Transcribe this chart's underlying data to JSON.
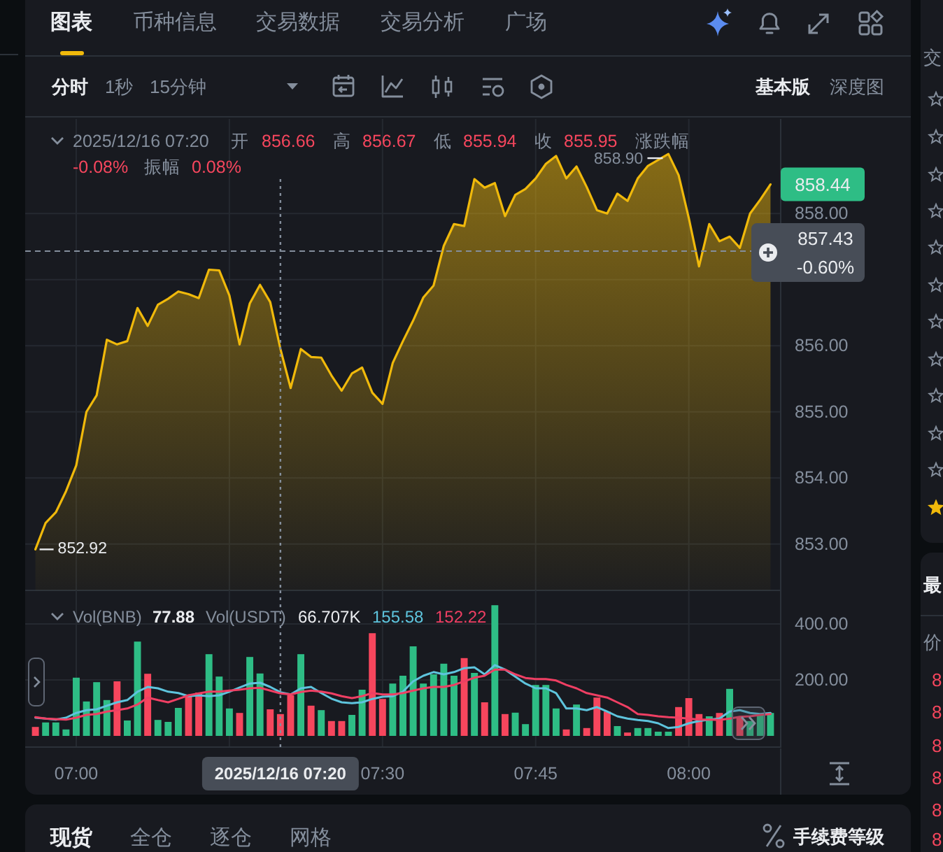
{
  "chart_data": [
    {
      "type": "area",
      "x": [
        "2025-12-16T06:56",
        "2025-12-16T06:57",
        "2025-12-16T06:58",
        "2025-12-16T06:59",
        "2025-12-16T07:00",
        "2025-12-16T07:01",
        "2025-12-16T07:02",
        "2025-12-16T07:03",
        "2025-12-16T07:04",
        "2025-12-16T07:05",
        "2025-12-16T07:06",
        "2025-12-16T07:07",
        "2025-12-16T07:08",
        "2025-12-16T07:09",
        "2025-12-16T07:10",
        "2025-12-16T07:11",
        "2025-12-16T07:12",
        "2025-12-16T07:13",
        "2025-12-16T07:14",
        "2025-12-16T07:15",
        "2025-12-16T07:16",
        "2025-12-16T07:17",
        "2025-12-16T07:18",
        "2025-12-16T07:19",
        "2025-12-16T07:20",
        "2025-12-16T07:21",
        "2025-12-16T07:22",
        "2025-12-16T07:23",
        "2025-12-16T07:24",
        "2025-12-16T07:25",
        "2025-12-16T07:26",
        "2025-12-16T07:27",
        "2025-12-16T07:28",
        "2025-12-16T07:29",
        "2025-12-16T07:30",
        "2025-12-16T07:31",
        "2025-12-16T07:32",
        "2025-12-16T07:33",
        "2025-12-16T07:34",
        "2025-12-16T07:35",
        "2025-12-16T07:36",
        "2025-12-16T07:37",
        "2025-12-16T07:38",
        "2025-12-16T07:39",
        "2025-12-16T07:40",
        "2025-12-16T07:41",
        "2025-12-16T07:42",
        "2025-12-16T07:43",
        "2025-12-16T07:44",
        "2025-12-16T07:45",
        "2025-12-16T07:46",
        "2025-12-16T07:47",
        "2025-12-16T07:48",
        "2025-12-16T07:49",
        "2025-12-16T07:50",
        "2025-12-16T07:51",
        "2025-12-16T07:52",
        "2025-12-16T07:53",
        "2025-12-16T07:54",
        "2025-12-16T07:55",
        "2025-12-16T07:56",
        "2025-12-16T07:57",
        "2025-12-16T07:58",
        "2025-12-16T07:59",
        "2025-12-16T08:00",
        "2025-12-16T08:01",
        "2025-12-16T08:02",
        "2025-12-16T08:03",
        "2025-12-16T08:04",
        "2025-12-16T08:05",
        "2025-12-16T08:06",
        "2025-12-16T08:07",
        "2025-12-16T08:08"
      ],
      "values": [
        852.92,
        853.32,
        853.48,
        853.8,
        854.19,
        855.0,
        855.25,
        856.09,
        856.02,
        856.07,
        856.57,
        856.3,
        856.62,
        856.71,
        856.82,
        856.78,
        856.72,
        857.15,
        857.14,
        856.76,
        856.02,
        856.64,
        856.92,
        856.66,
        855.95,
        855.36,
        855.95,
        855.83,
        855.82,
        855.55,
        855.32,
        855.58,
        855.67,
        855.29,
        855.12,
        855.74,
        856.07,
        856.38,
        856.73,
        856.91,
        857.51,
        857.84,
        857.81,
        858.52,
        858.39,
        858.46,
        857.96,
        858.28,
        858.37,
        858.53,
        858.75,
        858.87,
        858.53,
        858.71,
        858.4,
        858.05,
        858.0,
        858.3,
        858.19,
        858.53,
        858.72,
        858.81,
        858.9,
        858.58,
        857.93,
        857.2,
        857.84,
        857.58,
        857.65,
        857.48,
        858.0,
        858.21,
        858.44
      ],
      "color": "#f0b90b",
      "value_labels": [
        "852.92",
        null,
        null,
        null,
        null,
        null,
        null,
        null,
        null,
        null,
        null,
        null,
        null,
        null,
        null,
        null,
        null,
        null,
        null,
        null,
        null,
        null,
        null,
        null,
        null,
        null,
        null,
        null,
        null,
        null,
        null,
        null,
        null,
        null,
        null,
        null,
        null,
        null,
        null,
        null,
        null,
        null,
        null,
        null,
        null,
        null,
        null,
        null,
        null,
        null,
        null,
        null,
        null,
        null,
        null,
        null,
        null,
        null,
        null,
        null,
        null,
        null,
        "858.90",
        null,
        null,
        null,
        null,
        null,
        null,
        null,
        null,
        null,
        "858.44"
      ],
      "xlim": [
        "2025-12-16T06:55",
        "2025-12-16T08:09"
      ],
      "ylim": [
        852.3,
        859.43
      ],
      "xticks": [
        {
          "value": "2025-12-16T07:00",
          "label": null
        },
        {
          "value": "2025-12-16T07:15",
          "label": null
        },
        {
          "value": "2025-12-16T07:30",
          "label": null
        },
        {
          "value": "2025-12-16T07:45",
          "label": null
        },
        {
          "value": "2025-12-16T08:00",
          "label": null
        }
      ],
      "yticks": [
        {
          "value": 853,
          "label": "853.00"
        },
        {
          "value": 854,
          "label": "854.00"
        },
        {
          "value": 855,
          "label": "855.00"
        },
        {
          "value": 856,
          "label": "856.00"
        },
        {
          "value": 857,
          "label": null
        },
        {
          "value": 858,
          "label": "858.00"
        }
      ],
      "tick_labels": "y",
      "grid": true,
      "ref_lines": [
        {
          "axis": "x",
          "value": "2025-12-16T07:20",
          "line_style": "dotted"
        },
        {
          "axis": "y",
          "value": 857.43,
          "label": "857.43",
          "line_style": "dashed"
        }
      ],
      "annotations": [
        "图表",
        "币种信息",
        "交易数据",
        "交易分析",
        "广场",
        "分时",
        "1秒",
        "15分钟",
        "基本版",
        "深度图",
        "2025/12/16 07:20",
        "开",
        "856.66",
        "高",
        "856.67",
        "低",
        "855.94",
        "收",
        "855.95",
        "涨跌幅",
        "-0.08%",
        "振幅",
        "0.08%",
        "-0.60%",
        "交",
        "最",
        "价",
        "8",
        "8",
        "8",
        "8",
        "8",
        "8"
      ]
    },
    {
      "type": "bar",
      "x": [
        "2025-12-16T06:56",
        "2025-12-16T06:57",
        "2025-12-16T06:58",
        "2025-12-16T06:59",
        "2025-12-16T07:00",
        "2025-12-16T07:01",
        "2025-12-16T07:02",
        "2025-12-16T07:03",
        "2025-12-16T07:04",
        "2025-12-16T07:05",
        "2025-12-16T07:06",
        "2025-12-16T07:07",
        "2025-12-16T07:08",
        "2025-12-16T07:09",
        "2025-12-16T07:10",
        "2025-12-16T07:11",
        "2025-12-16T07:12",
        "2025-12-16T07:13",
        "2025-12-16T07:14",
        "2025-12-16T07:15",
        "2025-12-16T07:16",
        "2025-12-16T07:17",
        "2025-12-16T07:18",
        "2025-12-16T07:19",
        "2025-12-16T07:20",
        "2025-12-16T07:21",
        "2025-12-16T07:22",
        "2025-12-16T07:23",
        "2025-12-16T07:24",
        "2025-12-16T07:25",
        "2025-12-16T07:26",
        "2025-12-16T07:27",
        "2025-12-16T07:28",
        "2025-12-16T07:29",
        "2025-12-16T07:30",
        "2025-12-16T07:31",
        "2025-12-16T07:32",
        "2025-12-16T07:33",
        "2025-12-16T07:34",
        "2025-12-16T07:35",
        "2025-12-16T07:36",
        "2025-12-16T07:37",
        "2025-12-16T07:38",
        "2025-12-16T07:39",
        "2025-12-16T07:40",
        "2025-12-16T07:41",
        "2025-12-16T07:42",
        "2025-12-16T07:43",
        "2025-12-16T07:44",
        "2025-12-16T07:45",
        "2025-12-16T07:46",
        "2025-12-16T07:47",
        "2025-12-16T07:48",
        "2025-12-16T07:49",
        "2025-12-16T07:50",
        "2025-12-16T07:51",
        "2025-12-16T07:52",
        "2025-12-16T07:53",
        "2025-12-16T07:54",
        "2025-12-16T07:55",
        "2025-12-16T07:56",
        "2025-12-16T07:57",
        "2025-12-16T07:58",
        "2025-12-16T07:59",
        "2025-12-16T08:00",
        "2025-12-16T08:01",
        "2025-12-16T08:02",
        "2025-12-16T08:03",
        "2025-12-16T08:04",
        "2025-12-16T08:05",
        "2025-12-16T08:06",
        "2025-12-16T08:07",
        "2025-12-16T08:08"
      ],
      "series": [
        {
          "values": [
            32,
            48,
            48,
            23,
            208,
            123,
            192,
            128,
            195,
            55,
            337,
            222,
            57,
            50,
            100,
            148,
            155,
            292,
            212,
            98,
            82,
            282,
            223,
            95,
            78,
            145,
            292,
            108,
            92,
            53,
            53,
            75,
            165,
            367,
            132,
            187,
            215,
            320,
            187,
            220,
            258,
            215,
            278,
            225,
            120,
            467,
            78,
            83,
            42,
            182,
            182,
            98,
            23,
            112,
            28,
            137,
            87,
            35,
            12,
            28,
            28,
            15,
            15,
            103,
            135,
            78,
            70,
            82,
            168,
            70,
            53,
            78,
            82
          ],
          "colors": [
            "#f6465d",
            "#2ebd85",
            "#2ebd85",
            "#2ebd85",
            "#2ebd85",
            "#2ebd85",
            "#2ebd85",
            "#2ebd85",
            "#f6465d",
            "#2ebd85",
            "#2ebd85",
            "#f6465d",
            "#2ebd85",
            "#2ebd85",
            "#2ebd85",
            "#f6465d",
            "#f6465d",
            "#2ebd85",
            "#2ebd85",
            "#2ebd85",
            "#f6465d",
            "#2ebd85",
            "#2ebd85",
            "#f6465d",
            "#f6465d",
            "#f6465d",
            "#2ebd85",
            "#f6465d",
            "#2ebd85",
            "#f6465d",
            "#f6465d",
            "#2ebd85",
            "#2ebd85",
            "#f6465d",
            "#f6465d",
            "#2ebd85",
            "#2ebd85",
            "#2ebd85",
            "#2ebd85",
            "#2ebd85",
            "#2ebd85",
            "#2ebd85",
            "#f6465d",
            "#2ebd85",
            "#f6465d",
            "#2ebd85",
            "#f6465d",
            "#2ebd85",
            "#2ebd85",
            "#2ebd85",
            "#2ebd85",
            "#2ebd85",
            "#f6465d",
            "#2ebd85",
            "#f6465d",
            "#f6465d",
            "#f6465d",
            "#2ebd85",
            "#f6465d",
            "#2ebd85",
            "#2ebd85",
            "#2ebd85",
            "#2ebd85",
            "#f6465d",
            "#f6465d",
            "#f6465d",
            "#2ebd85",
            "#f6465d",
            "#2ebd85",
            "#f6465d",
            "#2ebd85",
            "#2ebd85",
            "#2ebd85"
          ]
        },
        {
          "type": "line",
          "color": "#5ec4dd",
          "values": [
            65,
            62,
            58,
            65,
            82,
            92,
            95,
            108,
            120,
            128,
            158,
            175,
            170,
            158,
            153,
            142,
            145,
            142,
            145,
            158,
            173,
            187,
            190,
            175,
            156,
            148,
            170,
            175,
            153,
            133,
            120,
            117,
            120,
            132,
            140,
            142,
            158,
            195,
            215,
            228,
            220,
            228,
            242,
            245,
            220,
            253,
            237,
            212,
            187,
            170,
            170,
            153,
            98,
            98,
            92,
            103,
            87,
            70,
            62,
            57,
            53,
            45,
            28,
            32,
            45,
            53,
            58,
            62,
            87,
            92,
            82,
            78,
            82
          ]
        },
        {
          "type": "line",
          "color": "#ef3f63",
          "values": [
            67,
            62,
            60,
            58,
            65,
            75,
            78,
            87,
            92,
            98,
            112,
            137,
            128,
            120,
            132,
            145,
            152,
            158,
            158,
            162,
            165,
            170,
            172,
            162,
            152,
            148,
            157,
            162,
            158,
            152,
            142,
            135,
            142,
            153,
            148,
            148,
            153,
            162,
            170,
            175,
            175,
            182,
            195,
            208,
            215,
            237,
            237,
            220,
            207,
            203,
            203,
            198,
            182,
            170,
            153,
            145,
            137,
            120,
            103,
            78,
            75,
            70,
            67,
            65,
            62,
            58,
            58,
            57,
            62,
            68,
            70,
            75,
            78
          ]
        }
      ],
      "xlim": [
        "2025-12-16T06:55",
        "2025-12-16T08:09"
      ],
      "ylim": [
        -40,
        520
      ],
      "xticks": [
        {
          "value": "2025-12-16T07:00",
          "label": "07:00"
        },
        {
          "value": "2025-12-16T07:15",
          "label": null
        },
        {
          "value": "2025-12-16T07:30",
          "label": "07:30"
        },
        {
          "value": "2025-12-16T07:45",
          "label": "07:45"
        },
        {
          "value": "2025-12-16T08:00",
          "label": "08:00"
        }
      ],
      "yticks": [
        {
          "value": 200,
          "label": "200.00"
        },
        {
          "value": 400,
          "label": "400.00"
        }
      ],
      "grid": true,
      "ref_lines": [
        {
          "axis": "x",
          "value": "2025-12-16T07:20",
          "label": "2025/12/16 07:20",
          "line_style": "dotted"
        }
      ],
      "annotations": [
        "Vol(BNB)",
        "77.88",
        "Vol(USDT)",
        "66.707K",
        "155.58",
        "152.22",
        "现货",
        "全仓",
        "逐仓",
        "网格",
        "手续费等级"
      ]
    }
  ]
}
